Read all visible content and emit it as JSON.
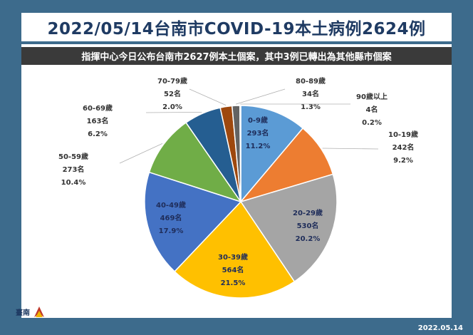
{
  "header": {
    "title": "2022/05/14台南市COVID-19本土病例2624例",
    "subtitle": "指揮中心今日公布台南市2627例本土個案，其中3例已轉出為其他縣市個案"
  },
  "footer": {
    "date": "2022.05.14"
  },
  "logo": {
    "icon": "tainan-city-logo",
    "text": "臺南"
  },
  "chart_data": {
    "type": "pie",
    "total": 2624,
    "categories": [
      "0-9歲",
      "10-19歲",
      "20-29歲",
      "30-39歲",
      "40-49歲",
      "50-59歲",
      "60-69歲",
      "70-79歲",
      "80-89歲",
      "90歲以上"
    ],
    "values": [
      293,
      242,
      530,
      564,
      469,
      273,
      163,
      52,
      34,
      4
    ],
    "counts": [
      "293名",
      "242名",
      "530名",
      "564名",
      "469名",
      "273名",
      "163名",
      "52名",
      "34名",
      "4名"
    ],
    "percents": [
      "11.2%",
      "9.2%",
      "20.2%",
      "21.5%",
      "17.9%",
      "10.4%",
      "6.2%",
      "2.0%",
      "1.3%",
      "0.2%"
    ],
    "colors": [
      "#5b9bd5",
      "#ed7d31",
      "#a5a5a5",
      "#ffc000",
      "#4472c4",
      "#70ad47",
      "#255e91",
      "#9e480e",
      "#636363",
      "#997300"
    ]
  }
}
